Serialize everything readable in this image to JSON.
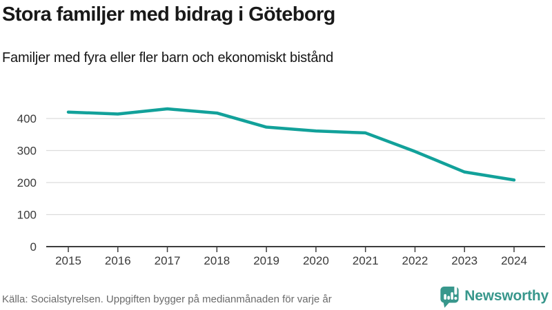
{
  "header": {
    "title": "Stora familjer med bidrag i Göteborg",
    "subtitle": "Familjer med fyra eller fler barn och ekonomiskt bistånd"
  },
  "chart_data": {
    "type": "line",
    "title": "Stora familjer med bidrag i Göteborg",
    "subtitle": "Familjer med fyra eller fler barn och ekonomiskt bistånd",
    "x": [
      2015,
      2016,
      2017,
      2018,
      2019,
      2020,
      2021,
      2022,
      2023,
      2024
    ],
    "series": [
      {
        "name": "Familjer med fyra eller fler barn och ekonomiskt bistånd",
        "values": [
          420,
          414,
          430,
          417,
          373,
          361,
          355,
          297,
          233,
          208
        ]
      }
    ],
    "xlabel": "",
    "ylabel": "",
    "ylim": [
      0,
      450
    ],
    "yticks": [
      0,
      100,
      200,
      300,
      400
    ],
    "grid": "horizontal",
    "legend_position": "none"
  },
  "footer": {
    "source": "Källa: Socialstyrelsen. Uppgiften bygger på medianmånaden för varje år",
    "logo_text": "Newsworthy"
  },
  "colors": {
    "line": "#12a19a",
    "logo": "#38978c",
    "grid": "#dcdcdc",
    "axis": "#3c3c3c",
    "axis_text": "#3a3a3a",
    "title_text": "#191919",
    "source_text": "#6a6a6a"
  }
}
